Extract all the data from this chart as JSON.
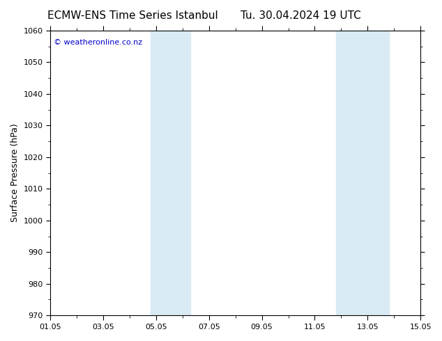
{
  "title_left": "ECMW-ENS Time Series Istanbul",
  "title_right": "Tu. 30.04.2024 19 UTC",
  "ylabel": "Surface Pressure (hPa)",
  "ylim": [
    970,
    1060
  ],
  "ytick_step": 10,
  "xtick_labels": [
    "01.05",
    "03.05",
    "05.05",
    "07.05",
    "09.05",
    "11.05",
    "13.05",
    "15.05"
  ],
  "xtick_positions_days": [
    0,
    2,
    4,
    6,
    8,
    10,
    12,
    14
  ],
  "shaded_bands": [
    {
      "x0_day": 3.8,
      "x1_day": 4.5
    },
    {
      "x0_day": 4.5,
      "x1_day": 5.3
    },
    {
      "x0_day": 10.8,
      "x1_day": 11.55
    },
    {
      "x0_day": 11.55,
      "x1_day": 12.8
    }
  ],
  "band_color": "#daeaf5",
  "band_alpha": 1.0,
  "bg_color": "#ffffff",
  "plot_bg_color": "#ffffff",
  "copyright_text": "© weatheronline.co.nz",
  "copyright_color": "#0000cc",
  "title_color": "#000000",
  "title_fontsize": 11,
  "ylabel_fontsize": 9,
  "tick_fontsize": 8,
  "grid_color": "#cccccc",
  "spine_color": "#000000"
}
